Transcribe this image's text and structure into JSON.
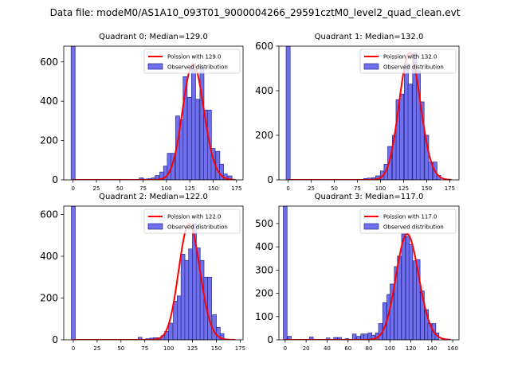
{
  "figure": {
    "title": "Data file: modeM0/AS1A10_093T01_9000004266_29591cztM0_level2_quad_clean.evt"
  },
  "colors": {
    "bar_fill": "#7070ee",
    "bar_edge": "#26268c",
    "curve": "#ff0000"
  },
  "chart_data": [
    {
      "type": "bar",
      "title": "Quadrant 0: Median=129.0",
      "legend": [
        "Poission with 129.0",
        "Observed distribution"
      ],
      "legend_position": "top-right",
      "median": 129,
      "xlim": [
        -10,
        182
      ],
      "ylim": [
        0,
        680
      ],
      "xticks": [
        0,
        25,
        50,
        75,
        100,
        125,
        150,
        175
      ],
      "yticks": [
        0,
        200,
        400,
        600
      ],
      "bin_width": 4.3,
      "bar_x": [
        0,
        73,
        77,
        82,
        86,
        90,
        95,
        99,
        103,
        107,
        112,
        116,
        120,
        125,
        129,
        133,
        138,
        142,
        146,
        150,
        155,
        159,
        163,
        168
      ],
      "bar_y": [
        680,
        10,
        4,
        6,
        10,
        22,
        40,
        70,
        135,
        135,
        325,
        305,
        525,
        420,
        590,
        410,
        580,
        355,
        355,
        160,
        145,
        80,
        30,
        20
      ]
    },
    {
      "type": "bar",
      "title": "Quadrant 1: Median=132.0",
      "legend": [
        "Poission with 132.0",
        "Observed distribution"
      ],
      "legend_position": "top-right",
      "median": 132,
      "xlim": [
        -10,
        185
      ],
      "ylim": [
        0,
        600
      ],
      "xticks": [
        0,
        25,
        50,
        75,
        100,
        125,
        150,
        175
      ],
      "yticks": [
        0,
        200,
        400,
        600
      ],
      "bin_width": 4.4,
      "bar_x": [
        0,
        84,
        88,
        93,
        97,
        102,
        106,
        110,
        115,
        119,
        123,
        128,
        132,
        137,
        141,
        145,
        150,
        154,
        159,
        163
      ],
      "bar_y": [
        600,
        6,
        8,
        10,
        18,
        40,
        70,
        150,
        200,
        360,
        385,
        520,
        430,
        570,
        490,
        350,
        200,
        80,
        80,
        20
      ]
    },
    {
      "type": "bar",
      "title": "Quadrant 2: Median=122.0",
      "legend": [
        "Poission with 122.0",
        "Observed distribution"
      ],
      "legend_position": "top-right",
      "median": 122,
      "xlim": [
        -10,
        178
      ],
      "ylim": [
        0,
        640
      ],
      "xticks": [
        0,
        25,
        50,
        75,
        100,
        125,
        150,
        175
      ],
      "yticks": [
        0,
        200,
        400,
        600
      ],
      "bin_width": 4.1,
      "bar_x": [
        0,
        70,
        78,
        82,
        86,
        90,
        94,
        98,
        102,
        107,
        111,
        115,
        119,
        123,
        127,
        131,
        135,
        139,
        143,
        148,
        152,
        156
      ],
      "bar_y": [
        640,
        12,
        5,
        8,
        10,
        10,
        20,
        40,
        80,
        185,
        210,
        410,
        380,
        435,
        555,
        440,
        380,
        300,
        300,
        120,
        60,
        30
      ]
    },
    {
      "type": "bar",
      "title": "Quadrant 3: Median=117.0",
      "legend": [
        "Poission with 117.0",
        "Observed distribution"
      ],
      "legend_position": "top-right",
      "median": 117,
      "xlim": [
        -6,
        166
      ],
      "ylim": [
        0,
        575
      ],
      "xticks": [
        0,
        20,
        40,
        60,
        80,
        100,
        120,
        140,
        160
      ],
      "yticks": [
        0,
        100,
        200,
        300,
        400,
        500
      ],
      "bin_width": 3.6,
      "bar_x": [
        0,
        4,
        25,
        41,
        48,
        52,
        59,
        66,
        70,
        74,
        77,
        81,
        84,
        88,
        91,
        95,
        99,
        102,
        106,
        109,
        113,
        117,
        120,
        124,
        127,
        131,
        135,
        138,
        142,
        145
      ],
      "bar_y": [
        575,
        15,
        12,
        8,
        10,
        10,
        5,
        25,
        15,
        25,
        25,
        30,
        20,
        30,
        70,
        160,
        195,
        240,
        315,
        360,
        455,
        445,
        410,
        340,
        345,
        210,
        130,
        70,
        70,
        30
      ]
    }
  ]
}
